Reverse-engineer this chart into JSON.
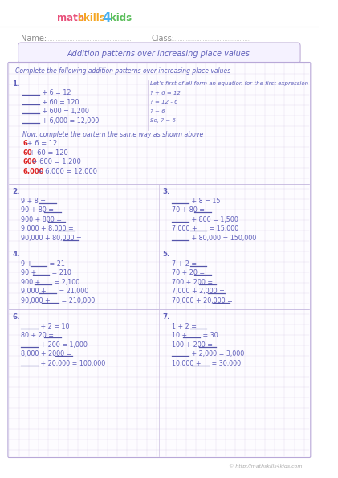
{
  "title": "Addition patterns over increasing place values",
  "name_label": "Name:",
  "class_label": "Class:",
  "instruction": "Complete the following addition patterns over increasing place values",
  "grid_color": "#ccc0e0",
  "border_color": "#b8a8d8",
  "text_color": "#6060bb",
  "red_color": "#dd2222",
  "background": "#ffffff",
  "footer": "© http://mathskills4kids.com",
  "logo": {
    "math_color": "#e8507a",
    "skills_color": "#f5a623",
    "four_color": "#4ab0f0",
    "kids_color": "#5cbf5c"
  },
  "section1": {
    "blanks": [
      " + 6 = 12",
      " + 60 = 120",
      " + 600 = 1,200",
      " + 6,000 = 12,000"
    ],
    "right_text": [
      "Let’s first of all form an equation for the first expression",
      "? + 6 = 12",
      "? = 12 - 6",
      "? = 6",
      "So, ? = 6"
    ],
    "note": "Now, complete the partern the same way as shown above",
    "answers_red": [
      "6",
      "60",
      "600",
      "6,000"
    ],
    "answers_rest": [
      " + 6 = 12",
      " + 60 = 120",
      " + 600 = 1,200",
      " + 6,000 = 12,000"
    ]
  },
  "section2": {
    "num": "2.",
    "lines": [
      [
        "9 + 8 = ",
        ""
      ],
      [
        "90 + 80 = ",
        ""
      ],
      [
        "900 + 800 = ",
        ""
      ],
      [
        "9,000 + 8,000 = ",
        ""
      ],
      [
        "90,000 + 80,000 = ",
        ""
      ]
    ]
  },
  "section3": {
    "num": "3.",
    "lines": [
      [
        "",
        " + 8 = 15"
      ],
      [
        "70 + 80 = ",
        ""
      ],
      [
        "",
        " + 800 = 1,500"
      ],
      [
        "7,000 + ",
        " = 15,000"
      ],
      [
        "",
        " + 80,000 = 150,000"
      ]
    ]
  },
  "section4": {
    "num": "4.",
    "lines": [
      [
        "9 + ",
        " = 21"
      ],
      [
        "90 + ",
        " = 210"
      ],
      [
        "900 + ",
        " = 2,100"
      ],
      [
        "9,000 + ",
        " = 21,000"
      ],
      [
        "90,000 + ",
        " = 210,000"
      ]
    ]
  },
  "section5": {
    "num": "5.",
    "lines": [
      [
        "7 + 2 = ",
        ""
      ],
      [
        "70 + 20 = ",
        ""
      ],
      [
        "700 + 200 = ",
        ""
      ],
      [
        "7,000 + 2,000 = ",
        ""
      ],
      [
        "70,000 + 20,000 = ",
        ""
      ]
    ]
  },
  "section6": {
    "num": "6.",
    "lines": [
      [
        "",
        " + 2 = 10"
      ],
      [
        "80 + 20 = ",
        ""
      ],
      [
        "",
        " + 200 = 1,000"
      ],
      [
        "8,000 + 2000 = ",
        ""
      ],
      [
        "",
        " + 20,000 = 100,000"
      ]
    ]
  },
  "section7": {
    "num": "7.",
    "lines": [
      [
        "1 + 2 = ",
        ""
      ],
      [
        "10 + ",
        " = 30"
      ],
      [
        "100 + 200 = ",
        ""
      ],
      [
        "",
        " + 2,000 = 3,000"
      ],
      [
        "10,000 + ",
        " = 30,000"
      ]
    ]
  }
}
